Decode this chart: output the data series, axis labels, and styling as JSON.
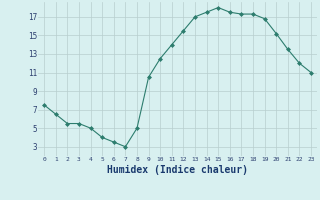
{
  "x": [
    0,
    1,
    2,
    3,
    4,
    5,
    6,
    7,
    8,
    9,
    10,
    11,
    12,
    13,
    14,
    15,
    16,
    17,
    18,
    19,
    20,
    21,
    22,
    23
  ],
  "y": [
    7.5,
    6.5,
    5.5,
    5.5,
    5.0,
    4.0,
    3.5,
    3.0,
    5.0,
    10.5,
    12.5,
    14.0,
    15.5,
    17.0,
    17.5,
    18.0,
    17.5,
    17.3,
    17.3,
    16.8,
    15.2,
    13.5,
    12.0,
    11.0
  ],
  "line_color": "#2d7d6e",
  "marker": "D",
  "marker_size": 2.0,
  "bg_color": "#d8f0f0",
  "grid_color": "#b8cece",
  "xlabel": "Humidex (Indice chaleur)",
  "xlabel_fontsize": 7.0,
  "xlabel_color": "#1a3a6e",
  "tick_label_color": "#2d4070",
  "ylim": [
    2,
    18.6
  ],
  "xlim": [
    -0.5,
    23.5
  ],
  "yticks": [
    3,
    5,
    7,
    9,
    11,
    13,
    15,
    17
  ],
  "xticks": [
    0,
    1,
    2,
    3,
    4,
    5,
    6,
    7,
    8,
    9,
    10,
    11,
    12,
    13,
    14,
    15,
    16,
    17,
    18,
    19,
    20,
    21,
    22,
    23
  ]
}
